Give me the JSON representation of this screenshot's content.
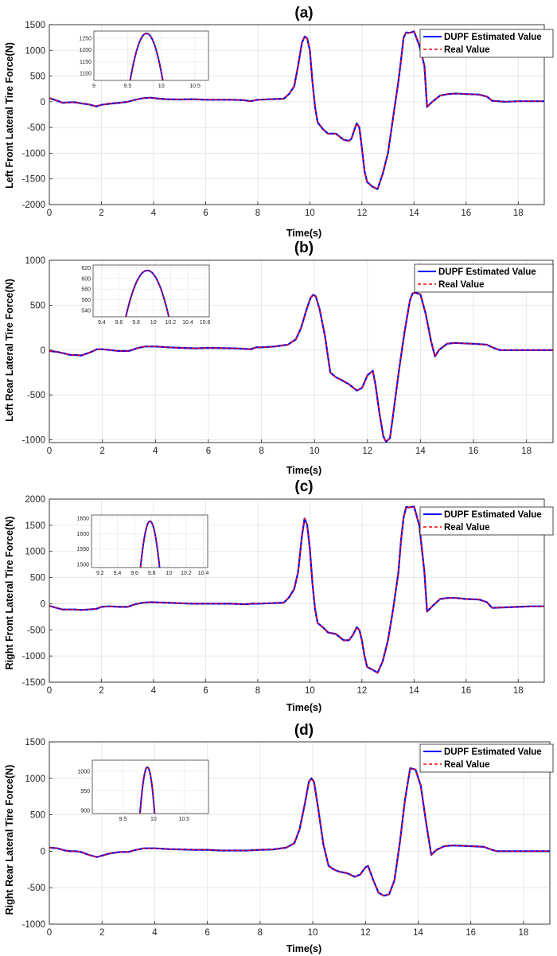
{
  "chart_data": [
    {
      "type": "line",
      "title": "(a)",
      "xlabel": "Time(s)",
      "ylabel": "Left Front Lateral Tire Force(N)",
      "xlim": [
        0,
        19
      ],
      "ylim": [
        -2000,
        1500
      ],
      "xticks": [
        0,
        2,
        4,
        6,
        8,
        10,
        12,
        14,
        16,
        18
      ],
      "yticks": [
        -2000,
        -1500,
        -1000,
        -500,
        0,
        500,
        1000,
        1500
      ],
      "grid": true,
      "legend": "top-right",
      "series": [
        {
          "name": "DUPF Estimated Value",
          "color": "#0000ff",
          "style": "solid"
        },
        {
          "name": "Real Value",
          "color": "#ff0000",
          "style": "dashed"
        }
      ],
      "x": [
        0,
        0.2,
        0.5,
        0.8,
        1.0,
        1.2,
        1.5,
        1.8,
        2.0,
        2.3,
        2.7,
        3.0,
        3.3,
        3.6,
        3.9,
        4.2,
        4.5,
        5.0,
        5.5,
        6.0,
        6.5,
        7.0,
        7.5,
        7.7,
        8.0,
        8.5,
        9.0,
        9.2,
        9.4,
        9.55,
        9.7,
        9.8,
        9.9,
        10.0,
        10.1,
        10.2,
        10.3,
        10.5,
        10.7,
        11.0,
        11.3,
        11.5,
        11.6,
        11.7,
        11.8,
        11.9,
        12.0,
        12.1,
        12.2,
        12.4,
        12.6,
        12.8,
        13.0,
        13.2,
        13.4,
        13.5,
        13.6,
        13.7,
        13.8,
        13.9,
        14.0,
        14.2,
        14.4,
        14.5,
        14.7,
        15.0,
        15.3,
        15.6,
        16.0,
        16.5,
        16.8,
        17.0,
        17.5,
        18.0,
        18.5,
        19.0
      ],
      "y": [
        70,
        40,
        -20,
        -10,
        -10,
        -30,
        -50,
        -90,
        -60,
        -40,
        -20,
        0,
        40,
        70,
        80,
        60,
        50,
        45,
        50,
        40,
        40,
        40,
        30,
        10,
        40,
        50,
        60,
        150,
        300,
        700,
        1150,
        1270,
        1230,
        1000,
        400,
        -100,
        -400,
        -530,
        -620,
        -620,
        -740,
        -760,
        -720,
        -560,
        -420,
        -500,
        -900,
        -1350,
        -1560,
        -1650,
        -1700,
        -1400,
        -1000,
        -300,
        400,
        800,
        1250,
        1350,
        1340,
        1350,
        1370,
        1100,
        700,
        -100,
        0,
        120,
        150,
        160,
        150,
        140,
        100,
        20,
        0,
        10,
        10,
        10
      ],
      "inset": {
        "xlim": [
          9,
          10.7
        ],
        "ylim": [
          1070,
          1280
        ],
        "xticks": [
          9,
          9.5,
          10,
          10.5
        ],
        "xtick_labels": [
          "9",
          "9.5",
          "10",
          "10.5"
        ],
        "yticks": [
          1100,
          1150,
          1200,
          1250
        ],
        "peak_x": 9.78,
        "peak_y": 1270,
        "half_width": 0.26
      }
    },
    {
      "type": "line",
      "title": "(b)",
      "xlabel": "Time(s)",
      "ylabel": "Left Rear Lateral Tire Force(N)",
      "xlim": [
        0,
        19
      ],
      "ylim": [
        -1030,
        1000
      ],
      "xticks": [
        0,
        2,
        4,
        6,
        8,
        10,
        12,
        14,
        16,
        18
      ],
      "yticks": [
        -1000,
        -500,
        0,
        500,
        1000
      ],
      "grid": true,
      "legend": "top-right",
      "series": [
        {
          "name": "DUPF Estimated Value",
          "color": "#0000ff",
          "style": "solid"
        },
        {
          "name": "Real Value",
          "color": "#ff0000",
          "style": "dashed"
        }
      ],
      "x": [
        0,
        0.3,
        0.6,
        0.8,
        1.0,
        1.2,
        1.5,
        1.8,
        2.0,
        2.3,
        2.6,
        3.0,
        3.3,
        3.6,
        4.0,
        4.5,
        5.0,
        5.5,
        6.0,
        7.0,
        7.6,
        7.8,
        8.0,
        8.5,
        9.0,
        9.3,
        9.5,
        9.7,
        9.85,
        9.95,
        10.05,
        10.2,
        10.4,
        10.6,
        10.8,
        11.0,
        11.3,
        11.6,
        11.8,
        12.0,
        12.2,
        12.3,
        12.45,
        12.6,
        12.7,
        12.85,
        13.0,
        13.2,
        13.4,
        13.6,
        13.7,
        13.8,
        14.0,
        14.2,
        14.4,
        14.55,
        14.7,
        15.0,
        15.3,
        15.6,
        16.0,
        16.5,
        16.8,
        17.0,
        17.5,
        18.0,
        18.5,
        19.0
      ],
      "y": [
        -10,
        -20,
        -40,
        -55,
        -55,
        -60,
        -30,
        10,
        10,
        0,
        -10,
        -10,
        20,
        40,
        40,
        30,
        25,
        20,
        25,
        20,
        10,
        30,
        30,
        40,
        60,
        120,
        250,
        450,
        580,
        615,
        600,
        450,
        150,
        -250,
        -300,
        -330,
        -380,
        -450,
        -420,
        -280,
        -230,
        -380,
        -700,
        -960,
        -1020,
        -980,
        -650,
        -200,
        200,
        550,
        630,
        640,
        620,
        400,
        100,
        -70,
        0,
        70,
        80,
        75,
        70,
        60,
        20,
        0,
        0,
        0,
        0,
        0
      ],
      "inset": {
        "xlim": [
          9.3,
          10.65
        ],
        "ylim": [
          528,
          625
        ],
        "xticks": [
          9.4,
          9.6,
          9.8,
          10,
          10.2,
          10.4,
          10.6
        ],
        "xtick_labels": [
          "9.4",
          "9.6",
          "9.8",
          "10",
          "10.2",
          "10.4",
          "10.6"
        ],
        "yticks": [
          540,
          560,
          580,
          600,
          620
        ],
        "peak_x": 9.93,
        "peak_y": 615,
        "half_width": 0.27
      }
    },
    {
      "type": "line",
      "title": "(c)",
      "xlabel": "Time(s)",
      "ylabel": "Right Front Lateral Tire Force(N)",
      "xlim": [
        0,
        19
      ],
      "ylim": [
        -1500,
        2000
      ],
      "xticks": [
        0,
        2,
        4,
        6,
        8,
        10,
        12,
        14,
        16,
        18
      ],
      "yticks": [
        -1500,
        -1000,
        -500,
        0,
        500,
        1000,
        1500,
        2000
      ],
      "grid": true,
      "legend": "top-right",
      "series": [
        {
          "name": "DUPF Estimated Value",
          "color": "#0000ff",
          "style": "solid"
        },
        {
          "name": "Real Value",
          "color": "#ff0000",
          "style": "dashed"
        }
      ],
      "x": [
        0,
        0.2,
        0.5,
        0.8,
        1.0,
        1.2,
        1.5,
        1.8,
        2.0,
        2.3,
        2.7,
        3.0,
        3.3,
        3.6,
        3.9,
        4.2,
        4.5,
        5.0,
        5.5,
        6.0,
        6.5,
        7.0,
        7.5,
        7.8,
        8.0,
        8.5,
        9.0,
        9.2,
        9.4,
        9.55,
        9.7,
        9.8,
        9.9,
        10.0,
        10.1,
        10.2,
        10.3,
        10.5,
        10.7,
        11.0,
        11.3,
        11.5,
        11.65,
        11.8,
        11.9,
        12.0,
        12.1,
        12.2,
        12.4,
        12.6,
        12.8,
        13.0,
        13.2,
        13.4,
        13.5,
        13.6,
        13.7,
        13.8,
        13.9,
        14.0,
        14.2,
        14.4,
        14.5,
        14.7,
        15.0,
        15.3,
        15.6,
        16.0,
        16.5,
        16.8,
        17.0,
        17.5,
        18.0,
        18.5,
        19.0
      ],
      "y": [
        -40,
        -70,
        -110,
        -110,
        -110,
        -120,
        -110,
        -100,
        -60,
        -50,
        -60,
        -60,
        -10,
        20,
        30,
        25,
        20,
        10,
        0,
        0,
        0,
        0,
        -10,
        0,
        0,
        10,
        20,
        120,
        280,
        600,
        1300,
        1630,
        1500,
        1050,
        400,
        -100,
        -370,
        -450,
        -550,
        -580,
        -700,
        -700,
        -600,
        -450,
        -500,
        -700,
        -1000,
        -1210,
        -1260,
        -1320,
        -1100,
        -700,
        -100,
        600,
        1200,
        1650,
        1850,
        1840,
        1850,
        1860,
        1500,
        600,
        -150,
        -50,
        90,
        110,
        110,
        90,
        80,
        30,
        -80,
        -70,
        -60,
        -50,
        -50
      ],
      "inset": {
        "xlim": [
          9.1,
          10.45
        ],
        "ylim": [
          1490,
          1660
        ],
        "xticks": [
          9.2,
          9.4,
          9.6,
          9.8,
          10,
          10.2,
          10.4
        ],
        "xtick_labels": [
          "9.2",
          "9.4",
          "9.6",
          "9.8",
          "10",
          "10.2",
          "10.4"
        ],
        "yticks": [
          1500,
          1550,
          1600,
          1650
        ],
        "peak_x": 9.78,
        "peak_y": 1640,
        "half_width": 0.12
      }
    },
    {
      "type": "line",
      "title": "(d)",
      "xlabel": "Time(s)",
      "ylabel": "Right Rear Lateral Tire Force(N)",
      "xlim": [
        0,
        19
      ],
      "ylim": [
        -1000,
        1500
      ],
      "xticks": [
        0,
        2,
        4,
        6,
        8,
        10,
        12,
        14,
        16,
        18
      ],
      "yticks": [
        -1000,
        -500,
        0,
        500,
        1000,
        1500
      ],
      "grid": true,
      "legend": "top-right",
      "series": [
        {
          "name": "DUPF Estimated Value",
          "color": "#0000ff",
          "style": "solid"
        },
        {
          "name": "Real Value",
          "color": "#ff0000",
          "style": "dashed"
        }
      ],
      "x": [
        0,
        0.3,
        0.6,
        0.8,
        1.0,
        1.2,
        1.5,
        1.8,
        2.0,
        2.3,
        2.7,
        3.0,
        3.3,
        3.6,
        4.0,
        4.5,
        5.0,
        5.5,
        6.0,
        6.5,
        7.0,
        7.5,
        8.0,
        8.5,
        9.0,
        9.3,
        9.5,
        9.7,
        9.85,
        9.95,
        10.05,
        10.2,
        10.4,
        10.6,
        10.8,
        11.0,
        11.3,
        11.6,
        11.8,
        12.0,
        12.1,
        12.3,
        12.5,
        12.7,
        12.9,
        13.1,
        13.3,
        13.5,
        13.7,
        13.9,
        14.1,
        14.3,
        14.5,
        14.7,
        15.0,
        15.3,
        15.6,
        16.0,
        16.5,
        16.8,
        17.0,
        17.5,
        18.0,
        18.5,
        19.0
      ],
      "y": [
        50,
        40,
        10,
        0,
        0,
        -10,
        -50,
        -80,
        -60,
        -30,
        -10,
        -10,
        20,
        40,
        40,
        30,
        25,
        20,
        20,
        10,
        10,
        10,
        20,
        25,
        50,
        110,
        300,
        650,
        950,
        1000,
        950,
        600,
        100,
        -200,
        -250,
        -280,
        -300,
        -350,
        -320,
        -220,
        -200,
        -400,
        -570,
        -610,
        -590,
        -400,
        100,
        700,
        1140,
        1120,
        900,
        400,
        -50,
        20,
        70,
        80,
        75,
        70,
        60,
        20,
        0,
        0,
        0,
        0,
        0
      ],
      "inset": {
        "xlim": [
          9,
          10.9
        ],
        "ylim": [
          892,
          1028
        ],
        "xticks": [
          9.5,
          10,
          10.5
        ],
        "xtick_labels": [
          "9.5",
          "10",
          "10.5"
        ],
        "yticks": [
          900,
          950,
          1000
        ],
        "peak_x": 9.9,
        "peak_y": 1010,
        "half_width": 0.13
      }
    }
  ]
}
